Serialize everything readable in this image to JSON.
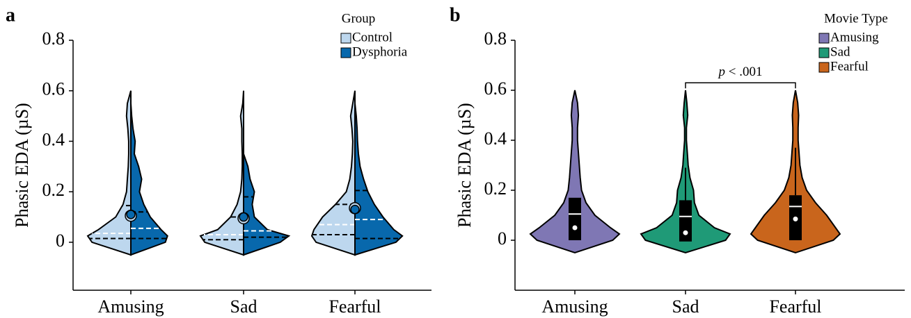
{
  "chart_data": [
    {
      "type": "split-violin",
      "panel": "a",
      "ylabel": "Phasic EDA (µS)",
      "categories": [
        "Amusing",
        "Sad",
        "Fearful"
      ],
      "ylim": [
        -0.19,
        0.8
      ],
      "yticks": [
        0,
        0.2,
        0.4,
        0.6,
        0.8
      ],
      "legend_title": "Group",
      "legend": "top-right",
      "density_y": [
        -0.05,
        0,
        0.025,
        0.05,
        0.1,
        0.15,
        0.2,
        0.25,
        0.3,
        0.35,
        0.4,
        0.45,
        0.5,
        0.55,
        0.6
      ],
      "series": [
        {
          "name": "Control",
          "color": "#bdd7ee",
          "side": "left",
          "density": [
            [
              0,
              0.9,
              1,
              0.75,
              0.35,
              0.18,
              0.1,
              0.08,
              0.06,
              0.05,
              0.05,
              0.07,
              0.1,
              0.08,
              0
            ],
            [
              0,
              0.9,
              1,
              0.6,
              0.3,
              0.15,
              0.07,
              0.04,
              0.03,
              0.03,
              0.04,
              0.04,
              0.07,
              0.02,
              0
            ],
            [
              0,
              0.9,
              1,
              0.95,
              0.75,
              0.45,
              0.2,
              0.12,
              0.08,
              0.06,
              0.05,
              0.07,
              0.1,
              0.05,
              0
            ]
          ],
          "q1": [
            0.015,
            0.01,
            0.03
          ],
          "median": [
            0.035,
            0.03,
            0.07
          ],
          "q3": [
            0.145,
            0.1,
            0.15
          ],
          "mean": [
            0.105,
            0.095,
            0.135
          ]
        },
        {
          "name": "Dysphoria",
          "color": "#0868ac",
          "side": "right",
          "density": [
            [
              0,
              0.8,
              0.85,
              0.7,
              0.45,
              0.3,
              0.2,
              0.25,
              0.18,
              0.08,
              0.1,
              0.05,
              0.02,
              0,
              0
            ],
            [
              0,
              0.85,
              1.05,
              0.55,
              0.25,
              0.2,
              0.25,
              0.15,
              0.1,
              0,
              0,
              0,
              0,
              0,
              0
            ],
            [
              0,
              0.95,
              1.1,
              0.9,
              0.65,
              0.45,
              0.3,
              0.2,
              0.12,
              0.08,
              0.06,
              0.05,
              0.03,
              0,
              0
            ]
          ],
          "q1": [
            0.015,
            0.02,
            0.015
          ],
          "median": [
            0.055,
            0.045,
            0.09
          ],
          "q3": [
            0.12,
            0.18,
            0.205
          ],
          "mean": [
            0.11,
            0.1,
            0.13
          ]
        }
      ]
    },
    {
      "type": "violin-box",
      "panel": "b",
      "ylabel": "Phasic EDA (µS)",
      "categories": [
        "Amusing",
        "Sad",
        "Fearful"
      ],
      "ylim": [
        -0.2,
        0.8
      ],
      "yticks": [
        0,
        0.2,
        0.4,
        0.6,
        0.8
      ],
      "legend_title": "Movie Type",
      "legend": "top-right",
      "density_y": [
        -0.05,
        0,
        0.025,
        0.05,
        0.1,
        0.15,
        0.2,
        0.25,
        0.3,
        0.35,
        0.4,
        0.45,
        0.5,
        0.55,
        0.6
      ],
      "series": [
        {
          "name": "Amusing",
          "color": "#7f77b4",
          "density": [
            0,
            0.85,
            1,
            0.8,
            0.45,
            0.25,
            0.15,
            0.12,
            0.1,
            0.08,
            0.06,
            0.06,
            0.08,
            0.06,
            0
          ],
          "q1": 0,
          "median": 0.105,
          "q3": 0.17,
          "mean": 0.05,
          "whisker_high": null
        },
        {
          "name": "Sad",
          "color": "#1f9a77",
          "density": [
            0,
            0.9,
            1,
            0.65,
            0.3,
            0.2,
            0.18,
            0.1,
            0.06,
            0.04,
            0.02,
            0.02,
            0.05,
            0.03,
            0
          ],
          "q1": -0.005,
          "median": 0.095,
          "q3": 0.16,
          "mean": 0.03,
          "whisker_high": 0.29
        },
        {
          "name": "Fearful",
          "color": "#c9651c",
          "density": [
            0,
            0.85,
            1,
            0.9,
            0.7,
            0.45,
            0.25,
            0.15,
            0.1,
            0.08,
            0.06,
            0.06,
            0.07,
            0.05,
            0
          ],
          "q1": 0,
          "median": 0.135,
          "q3": 0.18,
          "mean": 0.085,
          "whisker_high": 0.37
        }
      ],
      "annotation": {
        "parts": [
          "p",
          " < .001"
        ],
        "from": 1,
        "to": 2,
        "y": 0.63
      }
    }
  ]
}
